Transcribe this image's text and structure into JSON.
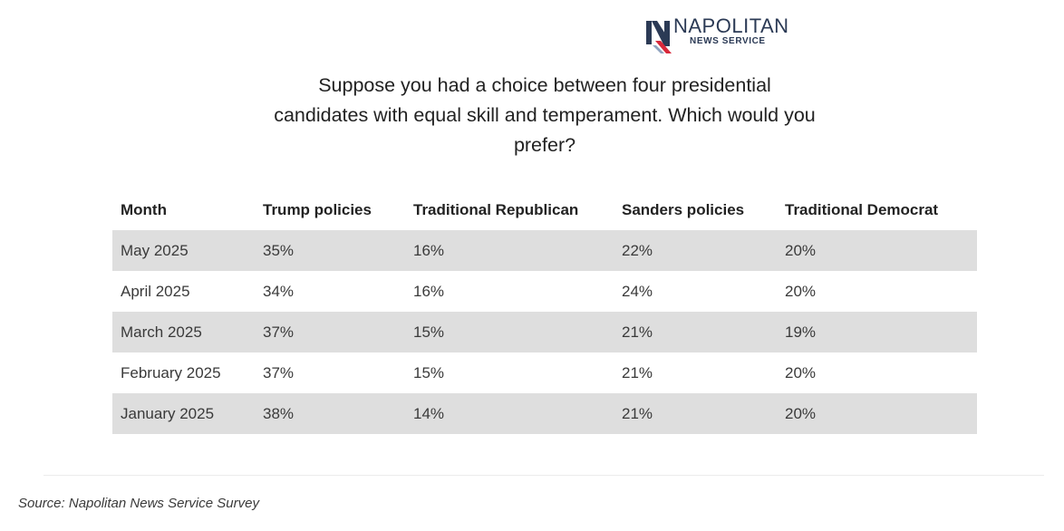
{
  "logo": {
    "word": "NAPOLITAN",
    "sub": "NEWS SERVICE",
    "icon": "napolitan-n-logo"
  },
  "question": "Suppose you had a choice between four presidential candidates with equal skill and temperament. Which would you prefer?",
  "source": "Source: Napolitan News Service Survey",
  "chart_data": {
    "type": "table",
    "columns": [
      "Month",
      "Trump policies",
      "Traditional Republican",
      "Sanders policies",
      "Traditional Democrat"
    ],
    "rows": [
      [
        "May 2025",
        "35%",
        "16%",
        "22%",
        "20%"
      ],
      [
        "April 2025",
        "34%",
        "16%",
        "24%",
        "20%"
      ],
      [
        "March 2025",
        "37%",
        "15%",
        "21%",
        "19%"
      ],
      [
        "February 2025",
        "37%",
        "15%",
        "21%",
        "20%"
      ],
      [
        "January 2025",
        "38%",
        "14%",
        "21%",
        "20%"
      ]
    ],
    "row_stripe_color": "#dedede"
  },
  "colors": {
    "logo_navy": "#2b3a55",
    "logo_red": "#d8283a"
  }
}
